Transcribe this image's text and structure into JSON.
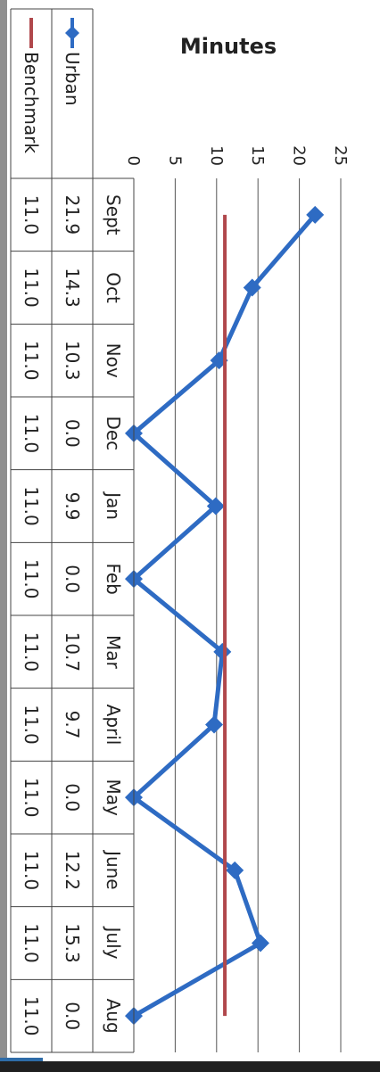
{
  "chart_data": {
    "type": "line",
    "ylabel": "Minutes",
    "ylim": [
      0,
      25
    ],
    "yticks": [
      "0",
      "5",
      "10",
      "15",
      "20",
      "25"
    ],
    "categories": [
      "Sept",
      "Oct",
      "Nov",
      "Dec",
      "Jan",
      "Feb",
      "Mar",
      "April",
      "May",
      "June",
      "July",
      "Aug"
    ],
    "series": [
      {
        "name": "Urban",
        "color": "#2e6bc3",
        "marker": "diamond",
        "values": [
          21.9,
          14.3,
          10.3,
          0.0,
          9.9,
          0.0,
          10.7,
          9.7,
          0.0,
          12.2,
          15.3,
          0.0
        ],
        "labels": [
          "21.9",
          "14.3",
          "10.3",
          "0.0",
          "9.9",
          "0.0",
          "10.7",
          "9.7",
          "0.0",
          "12.2",
          "15.3",
          "0.0"
        ]
      },
      {
        "name": "Benchmark",
        "color": "#b0484c",
        "marker": "none",
        "values": [
          11.0,
          11.0,
          11.0,
          11.0,
          11.0,
          11.0,
          11.0,
          11.0,
          11.0,
          11.0,
          11.0,
          11.0
        ],
        "labels": [
          "11.0",
          "11.0",
          "11.0",
          "11.0",
          "11.0",
          "11.0",
          "11.0",
          "11.0",
          "11.0",
          "11.0",
          "11.0",
          "11.0"
        ]
      }
    ],
    "grid": true,
    "legend": "data-table-left",
    "data_table": true
  }
}
